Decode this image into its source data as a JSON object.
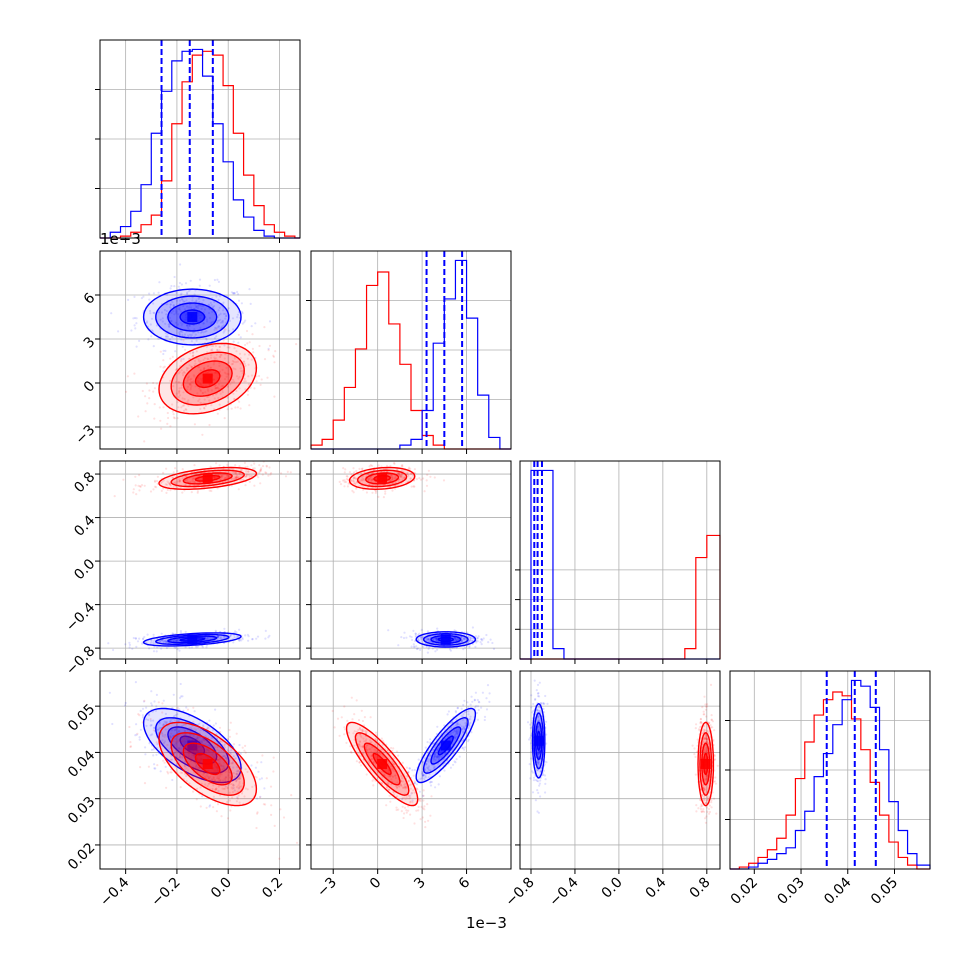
{
  "figure": {
    "type": "corner"
  },
  "colors": {
    "series_a": "#0000ff",
    "series_b": "#ff0000",
    "grid": "#b0b0b0"
  },
  "offset_labels": {
    "row1_y": "1e−3",
    "col1_x": "1e−3"
  },
  "chart_data": {
    "type": "corner",
    "grid": true,
    "n_params": 4,
    "series": [
      {
        "color": "#0000ff",
        "quantiles": [
          [
            -0.26,
            -0.15,
            -0.06
          ],
          [
            3.3,
            4.5,
            5.7
          ],
          [
            -0.77,
            -0.74,
            -0.7
          ],
          [
            0.0355,
            0.0415,
            0.046
          ]
        ]
      },
      {
        "color": "#ff0000"
      }
    ],
    "axes": [
      {
        "range": [
          -0.5,
          0.28
        ],
        "ticks": [
          -0.4,
          -0.2,
          0.0,
          0.2
        ],
        "tick_labels": [
          "−0.4",
          "−0.2",
          "0.0",
          "0.2"
        ],
        "offset": ""
      },
      {
        "range": [
          -4.5,
          9.0
        ],
        "ticks": [
          -3,
          0,
          3,
          6
        ],
        "tick_labels": [
          "−3",
          "0",
          "3",
          "6"
        ],
        "offset": "1e−3"
      },
      {
        "range": [
          -0.9,
          0.92
        ],
        "ticks": [
          -0.8,
          -0.4,
          0.0,
          0.4,
          0.8
        ],
        "tick_labels": [
          "−0.8",
          "−0.4",
          "0.0",
          "0.4",
          "0.8"
        ],
        "offset": ""
      },
      {
        "range": [
          0.0148,
          0.0576
        ],
        "ticks": [
          0.02,
          0.03,
          0.04,
          0.05
        ],
        "tick_labels": [
          "0.02",
          "0.03",
          "0.04",
          "0.05"
        ],
        "offset": ""
      }
    ],
    "histograms": [
      {
        "edges": [
          -0.5,
          -0.46,
          -0.42,
          -0.38,
          -0.34,
          -0.3,
          -0.26,
          -0.22,
          -0.18,
          -0.14,
          -0.1,
          -0.06,
          -0.02,
          0.02,
          0.06,
          0.1,
          0.14,
          0.18,
          0.22,
          0.26,
          0.28
        ],
        "blue": [
          0.0,
          0.03,
          0.06,
          0.14,
          0.28,
          0.55,
          0.77,
          0.93,
          0.98,
          0.99,
          0.85,
          0.6,
          0.4,
          0.2,
          0.11,
          0.04,
          0.01,
          0.0,
          0.0,
          0.0
        ],
        "red": [
          0.0,
          0.0,
          0.01,
          0.03,
          0.07,
          0.12,
          0.3,
          0.6,
          0.82,
          0.96,
          0.98,
          0.96,
          0.8,
          0.55,
          0.33,
          0.17,
          0.07,
          0.03,
          0.01,
          0.0
        ]
      },
      {
        "edges": [
          -4.5,
          -3.75,
          -3.0,
          -2.25,
          -1.5,
          -0.75,
          0.0,
          0.75,
          1.5,
          2.25,
          3.0,
          3.75,
          4.5,
          5.25,
          6.0,
          6.75,
          7.5,
          8.25,
          9.0
        ],
        "blue": [
          0.0,
          0.0,
          0.0,
          0.0,
          0.0,
          0.0,
          0.0,
          0.0,
          0.02,
          0.05,
          0.2,
          0.55,
          0.78,
          0.98,
          0.68,
          0.28,
          0.06,
          0.0
        ],
        "red": [
          0.02,
          0.05,
          0.15,
          0.32,
          0.52,
          0.85,
          0.92,
          0.65,
          0.44,
          0.2,
          0.07,
          0.02,
          0.0,
          0.0,
          0.0,
          0.0,
          0.0,
          0.0
        ]
      },
      {
        "edges": [
          -0.9,
          -0.8,
          -0.7,
          -0.6,
          -0.5,
          -0.4,
          -0.3,
          -0.2,
          -0.1,
          0.0,
          0.1,
          0.2,
          0.3,
          0.4,
          0.5,
          0.6,
          0.7,
          0.8,
          0.92
        ],
        "blue": [
          0.0,
          1.45,
          1.45,
          0.08,
          0.0,
          0.0,
          0.0,
          0.0,
          0.0,
          0.0,
          0.0,
          0.0,
          0.0,
          0.0,
          0.0,
          0.0,
          0.0,
          0.0
        ],
        "red": [
          0.0,
          0.0,
          0.0,
          0.0,
          0.0,
          0.0,
          0.0,
          0.0,
          0.0,
          0.0,
          0.0,
          0.0,
          0.0,
          0.0,
          0.0,
          0.08,
          0.78,
          0.95
        ]
      },
      {
        "edges": [
          0.0148,
          0.0168,
          0.0188,
          0.0208,
          0.0228,
          0.0248,
          0.0268,
          0.0288,
          0.0308,
          0.0328,
          0.0348,
          0.0368,
          0.0388,
          0.0408,
          0.0428,
          0.0448,
          0.0468,
          0.0488,
          0.0508,
          0.0528,
          0.0548,
          0.0576
        ],
        "blue": [
          0.0,
          0.0,
          0.01,
          0.03,
          0.05,
          0.08,
          0.11,
          0.2,
          0.3,
          0.48,
          0.6,
          0.75,
          0.88,
          0.98,
          0.95,
          0.84,
          0.62,
          0.35,
          0.2,
          0.08,
          0.02
        ],
        "red": [
          0.0,
          0.01,
          0.03,
          0.06,
          0.1,
          0.16,
          0.28,
          0.47,
          0.66,
          0.8,
          0.88,
          0.92,
          0.9,
          0.78,
          0.62,
          0.45,
          0.28,
          0.14,
          0.06,
          0.02,
          0.0
        ]
      }
    ],
    "pairs": [
      {
        "row": 1,
        "col": 0,
        "blue": {
          "mean": [
            -0.14,
            4.5
          ],
          "sd": [
            0.095,
            0.95
          ],
          "corr": 0.0
        },
        "red": {
          "mean": [
            -0.08,
            0.3
          ],
          "sd": [
            0.095,
            1.2
          ],
          "corr": 0.3
        }
      },
      {
        "row": 2,
        "col": 0,
        "blue": {
          "mean": [
            -0.14,
            -0.72
          ],
          "sd": [
            0.095,
            0.03
          ],
          "corr": 0.45
        },
        "red": {
          "mean": [
            -0.08,
            0.76
          ],
          "sd": [
            0.095,
            0.05
          ],
          "corr": 0.45
        }
      },
      {
        "row": 2,
        "col": 1,
        "blue": {
          "mean": [
            4.6,
            -0.72
          ],
          "sd": [
            1.0,
            0.035
          ],
          "corr": 0.0
        },
        "red": {
          "mean": [
            0.3,
            0.76
          ],
          "sd": [
            1.1,
            0.05
          ],
          "corr": 0.2
        }
      },
      {
        "row": 3,
        "col": 0,
        "blue": {
          "mean": [
            -0.14,
            0.0415
          ],
          "sd": [
            0.095,
            0.004
          ],
          "corr": -0.6
        },
        "red": {
          "mean": [
            -0.08,
            0.0375
          ],
          "sd": [
            0.095,
            0.0045
          ],
          "corr": -0.6
        }
      },
      {
        "row": 3,
        "col": 1,
        "blue": {
          "mean": [
            4.6,
            0.0415
          ],
          "sd": [
            1.0,
            0.004
          ],
          "corr": 0.85
        },
        "red": {
          "mean": [
            0.3,
            0.0375
          ],
          "sd": [
            1.2,
            0.0045
          ],
          "corr": -0.85
        }
      },
      {
        "row": 3,
        "col": 2,
        "blue": {
          "mean": [
            -0.73,
            0.0425
          ],
          "sd": [
            0.028,
            0.004
          ],
          "corr": 0.0
        },
        "red": {
          "mean": [
            0.79,
            0.0375
          ],
          "sd": [
            0.035,
            0.0045
          ],
          "corr": 0.0
        }
      }
    ]
  }
}
